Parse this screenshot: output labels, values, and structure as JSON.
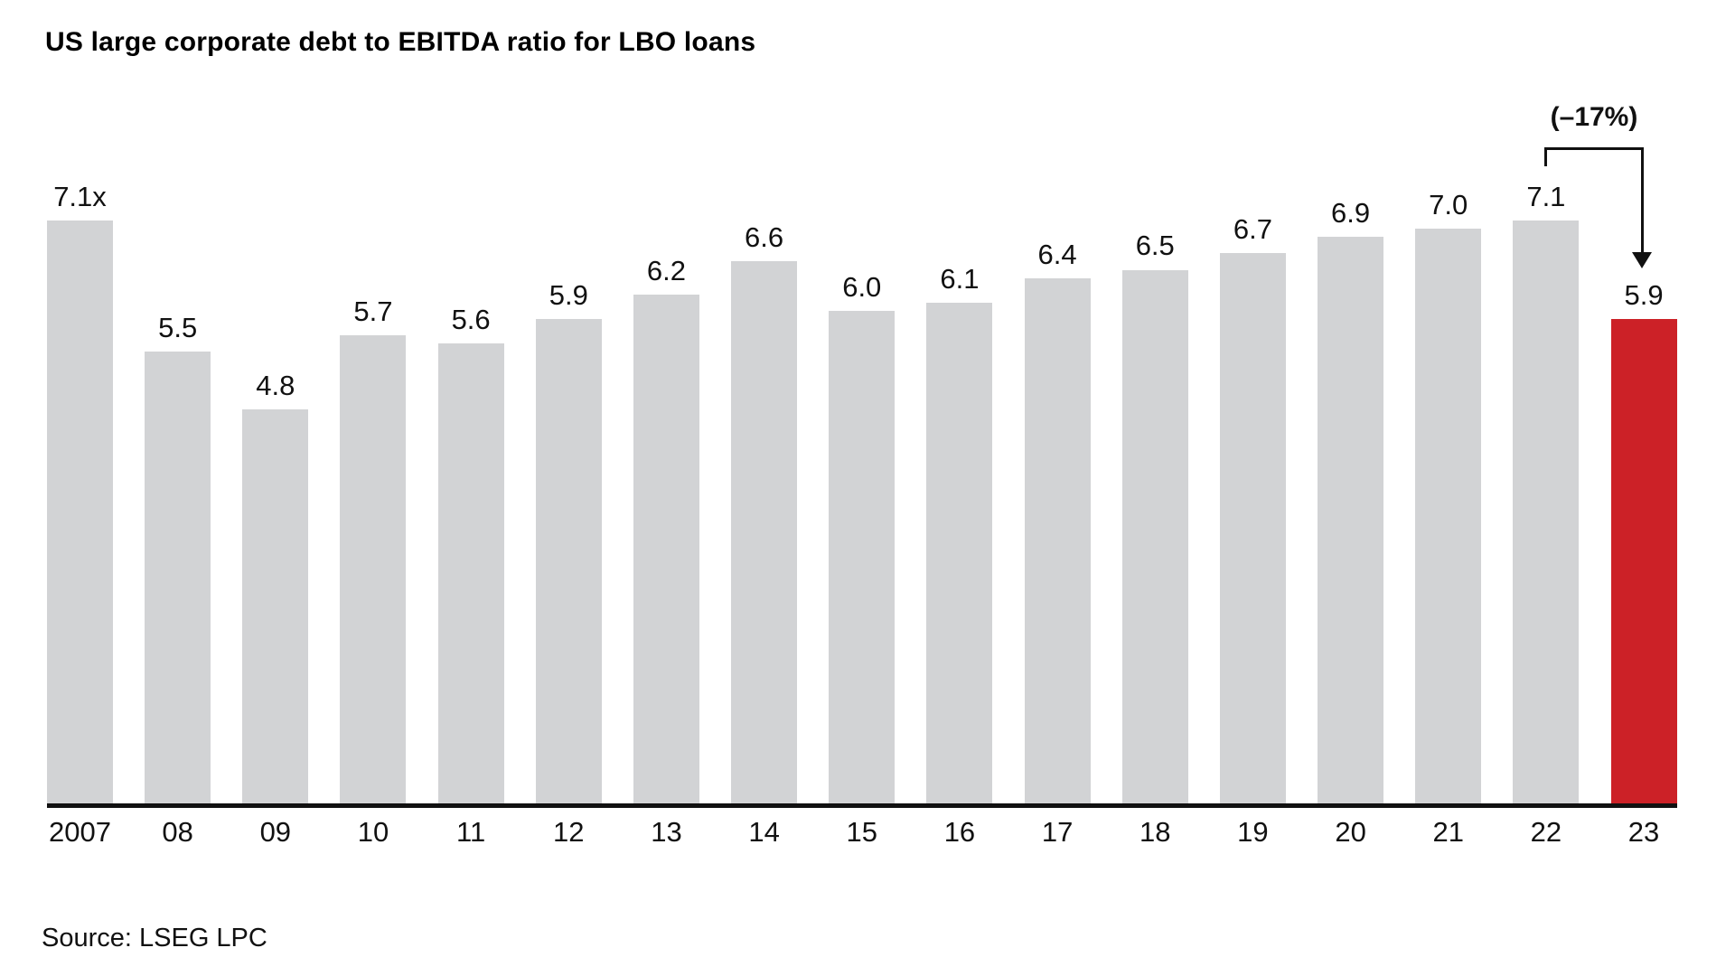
{
  "title": "US large corporate debt to EBITDA ratio for LBO loans",
  "source": "Source: LSEG LPC",
  "annotation": {
    "label": "(–17%)"
  },
  "colors": {
    "bar_gray": "#d2d3d5",
    "highlight_red": "#cc2127",
    "axis_black": "#111111"
  },
  "chart_data": {
    "type": "bar",
    "title": "US large corporate debt to EBITDA ratio for LBO loans",
    "categories": [
      "2007",
      "08",
      "09",
      "10",
      "11",
      "12",
      "13",
      "14",
      "15",
      "16",
      "17",
      "18",
      "19",
      "20",
      "21",
      "22",
      "23"
    ],
    "values": [
      7.1,
      5.5,
      4.8,
      5.7,
      5.6,
      5.9,
      6.2,
      6.6,
      6.0,
      6.1,
      6.4,
      6.5,
      6.7,
      6.9,
      7.0,
      7.1,
      5.9
    ],
    "value_labels": [
      "7.1x",
      "5.5",
      "4.8",
      "5.7",
      "5.6",
      "5.9",
      "6.2",
      "6.6",
      "6.0",
      "6.1",
      "6.4",
      "6.5",
      "6.7",
      "6.9",
      "7.0",
      "7.1",
      "5.9"
    ],
    "unit": "x",
    "highlight_index": 16,
    "annotation": {
      "text": "(–17%)",
      "from_category": "22",
      "to_category": "23"
    },
    "xlabel": "",
    "ylabel": "",
    "ylim": [
      0,
      7.1
    ],
    "grid": false,
    "legend": false,
    "source": "Source: LSEG LPC"
  }
}
